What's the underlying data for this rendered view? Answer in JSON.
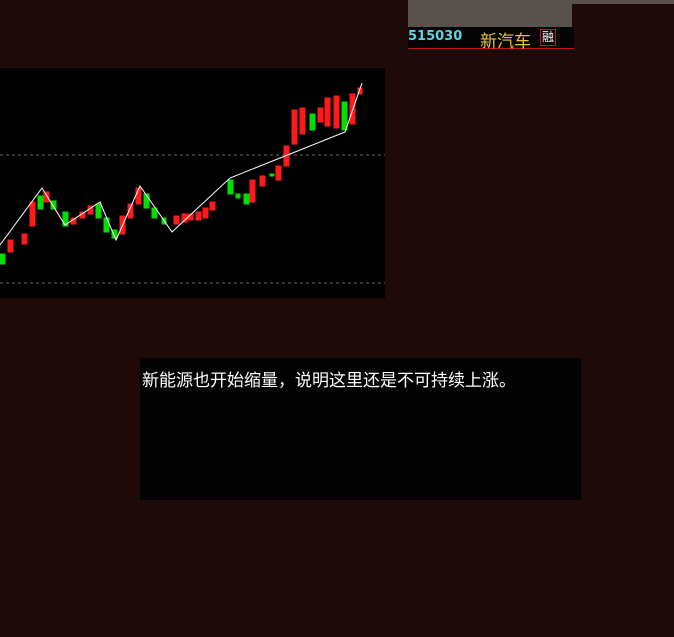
{
  "header": {
    "code": "515030",
    "name": "新汽车",
    "badge": "融"
  },
  "comment": {
    "text": "新能源也开始缩量，说明这里还是不可持续上涨。"
  }
}
